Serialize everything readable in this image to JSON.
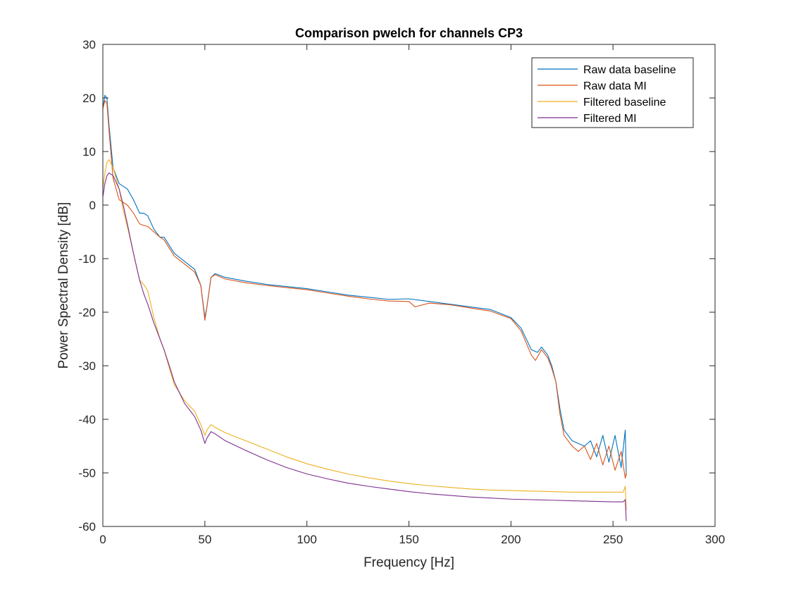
{
  "chart_data": {
    "type": "line",
    "title": "Comparison pwelch for channels CP3",
    "xlabel": "Frequency [Hz]",
    "ylabel": "Power Spectral Density [dB]",
    "xlim": [
      0,
      300
    ],
    "ylim": [
      -60,
      30
    ],
    "xticks": [
      0,
      50,
      100,
      150,
      200,
      250,
      300
    ],
    "yticks": [
      -60,
      -50,
      -40,
      -30,
      -20,
      -10,
      0,
      10,
      20,
      30
    ],
    "grid": false,
    "legend_position": "top-right",
    "series": [
      {
        "name": "Raw data baseline",
        "color": "#0072BD",
        "points": [
          [
            0,
            18
          ],
          [
            1,
            20.5
          ],
          [
            2,
            20
          ],
          [
            3,
            15
          ],
          [
            5,
            7
          ],
          [
            8,
            4
          ],
          [
            12,
            3
          ],
          [
            15,
            1
          ],
          [
            18,
            -1.5
          ],
          [
            20,
            -1.5
          ],
          [
            22,
            -2
          ],
          [
            25,
            -4.5
          ],
          [
            28,
            -6
          ],
          [
            30,
            -6
          ],
          [
            35,
            -9
          ],
          [
            40,
            -10.5
          ],
          [
            45,
            -12
          ],
          [
            48,
            -15
          ],
          [
            50,
            -21
          ],
          [
            51,
            -19
          ],
          [
            53,
            -13.5
          ],
          [
            55,
            -12.8
          ],
          [
            60,
            -13.5
          ],
          [
            70,
            -14.2
          ],
          [
            80,
            -14.8
          ],
          [
            90,
            -15.2
          ],
          [
            100,
            -15.6
          ],
          [
            110,
            -16.2
          ],
          [
            120,
            -16.8
          ],
          [
            130,
            -17.2
          ],
          [
            140,
            -17.6
          ],
          [
            150,
            -17.5
          ],
          [
            160,
            -18
          ],
          [
            170,
            -18.5
          ],
          [
            180,
            -19
          ],
          [
            190,
            -19.5
          ],
          [
            200,
            -21
          ],
          [
            205,
            -23
          ],
          [
            210,
            -27
          ],
          [
            213,
            -27.5
          ],
          [
            215,
            -26.5
          ],
          [
            218,
            -28
          ],
          [
            220,
            -30
          ],
          [
            222,
            -33
          ],
          [
            224,
            -38
          ],
          [
            226,
            -42
          ],
          [
            228,
            -43
          ],
          [
            230,
            -44
          ],
          [
            233,
            -44.5
          ],
          [
            236,
            -45
          ],
          [
            239,
            -44
          ],
          [
            242,
            -47
          ],
          [
            245,
            -43
          ],
          [
            248,
            -48
          ],
          [
            251,
            -43
          ],
          [
            254,
            -49
          ],
          [
            256,
            -42
          ],
          [
            256.5,
            -50.5
          ]
        ]
      },
      {
        "name": "Raw data MI",
        "color": "#D95319",
        "points": [
          [
            0,
            18
          ],
          [
            1,
            19.5
          ],
          [
            2,
            19
          ],
          [
            3,
            14
          ],
          [
            5,
            5
          ],
          [
            8,
            1
          ],
          [
            12,
            0
          ],
          [
            15,
            -1.5
          ],
          [
            18,
            -3.5
          ],
          [
            20,
            -3.8
          ],
          [
            22,
            -4
          ],
          [
            25,
            -5
          ],
          [
            28,
            -6
          ],
          [
            30,
            -6.5
          ],
          [
            35,
            -9.5
          ],
          [
            40,
            -11
          ],
          [
            45,
            -12.5
          ],
          [
            48,
            -15
          ],
          [
            50,
            -21.5
          ],
          [
            51,
            -19
          ],
          [
            53,
            -13.5
          ],
          [
            55,
            -13
          ],
          [
            60,
            -13.8
          ],
          [
            70,
            -14.5
          ],
          [
            80,
            -15
          ],
          [
            90,
            -15.4
          ],
          [
            100,
            -15.8
          ],
          [
            110,
            -16.4
          ],
          [
            120,
            -17
          ],
          [
            130,
            -17.5
          ],
          [
            140,
            -17.9
          ],
          [
            150,
            -18
          ],
          [
            153,
            -19
          ],
          [
            160,
            -18.3
          ],
          [
            170,
            -18.6
          ],
          [
            180,
            -19.2
          ],
          [
            190,
            -19.8
          ],
          [
            200,
            -21.2
          ],
          [
            205,
            -23.5
          ],
          [
            210,
            -28
          ],
          [
            212,
            -29
          ],
          [
            215,
            -27
          ],
          [
            218,
            -28.5
          ],
          [
            220,
            -30.5
          ],
          [
            222,
            -33
          ],
          [
            224,
            -39
          ],
          [
            226,
            -43
          ],
          [
            228,
            -44
          ],
          [
            230,
            -45
          ],
          [
            233,
            -46
          ],
          [
            236,
            -45
          ],
          [
            239,
            -47.5
          ],
          [
            242,
            -44.5
          ],
          [
            245,
            -48.5
          ],
          [
            248,
            -45
          ],
          [
            251,
            -49.5
          ],
          [
            254,
            -46
          ],
          [
            256,
            -51
          ],
          [
            256.5,
            -50
          ]
        ]
      },
      {
        "name": "Filtered baseline",
        "color": "#EDB120",
        "points": [
          [
            0,
            3
          ],
          [
            1,
            6
          ],
          [
            2,
            8
          ],
          [
            3,
            8.5
          ],
          [
            5,
            7
          ],
          [
            8,
            3
          ],
          [
            10,
            -1
          ],
          [
            12,
            -4
          ],
          [
            15,
            -9
          ],
          [
            18,
            -14
          ],
          [
            20,
            -14.8
          ],
          [
            22,
            -16
          ],
          [
            25,
            -21
          ],
          [
            28,
            -25
          ],
          [
            30,
            -27
          ],
          [
            33,
            -31
          ],
          [
            35,
            -33.5
          ],
          [
            40,
            -36.5
          ],
          [
            45,
            -38.5
          ],
          [
            48,
            -41
          ],
          [
            50,
            -43
          ],
          [
            51,
            -42
          ],
          [
            53,
            -41
          ],
          [
            55,
            -41.5
          ],
          [
            60,
            -42.5
          ],
          [
            70,
            -44
          ],
          [
            80,
            -45.5
          ],
          [
            90,
            -47
          ],
          [
            100,
            -48.3
          ],
          [
            110,
            -49.3
          ],
          [
            120,
            -50.2
          ],
          [
            130,
            -50.9
          ],
          [
            140,
            -51.5
          ],
          [
            150,
            -52
          ],
          [
            160,
            -52.4
          ],
          [
            170,
            -52.7
          ],
          [
            180,
            -53
          ],
          [
            190,
            -53.2
          ],
          [
            200,
            -53.3
          ],
          [
            210,
            -53.4
          ],
          [
            220,
            -53.5
          ],
          [
            230,
            -53.6
          ],
          [
            240,
            -53.6
          ],
          [
            250,
            -53.6
          ],
          [
            255,
            -53.6
          ],
          [
            256,
            -52.5
          ],
          [
            256.5,
            -57
          ]
        ]
      },
      {
        "name": "Filtered MI",
        "color": "#7E2F8E",
        "points": [
          [
            0,
            1.5
          ],
          [
            1,
            4
          ],
          [
            2,
            5.5
          ],
          [
            3,
            6
          ],
          [
            5,
            5.5
          ],
          [
            8,
            3
          ],
          [
            10,
            0
          ],
          [
            12,
            -3.5
          ],
          [
            15,
            -9
          ],
          [
            18,
            -14
          ],
          [
            20,
            -16.5
          ],
          [
            22,
            -18.5
          ],
          [
            25,
            -22
          ],
          [
            28,
            -25
          ],
          [
            30,
            -27
          ],
          [
            33,
            -30.5
          ],
          [
            35,
            -33
          ],
          [
            40,
            -37
          ],
          [
            45,
            -39.5
          ],
          [
            48,
            -42
          ],
          [
            50,
            -44.5
          ],
          [
            51,
            -43.5
          ],
          [
            53,
            -42.3
          ],
          [
            55,
            -42.7
          ],
          [
            60,
            -44
          ],
          [
            70,
            -45.8
          ],
          [
            80,
            -47.5
          ],
          [
            90,
            -49
          ],
          [
            100,
            -50.2
          ],
          [
            110,
            -51.1
          ],
          [
            120,
            -51.9
          ],
          [
            130,
            -52.5
          ],
          [
            140,
            -53
          ],
          [
            150,
            -53.5
          ],
          [
            160,
            -53.9
          ],
          [
            170,
            -54.2
          ],
          [
            180,
            -54.5
          ],
          [
            190,
            -54.7
          ],
          [
            200,
            -54.9
          ],
          [
            210,
            -55
          ],
          [
            220,
            -55.1
          ],
          [
            230,
            -55.2
          ],
          [
            240,
            -55.3
          ],
          [
            250,
            -55.4
          ],
          [
            255,
            -55.4
          ],
          [
            256,
            -55
          ],
          [
            256.5,
            -59
          ]
        ]
      }
    ]
  }
}
